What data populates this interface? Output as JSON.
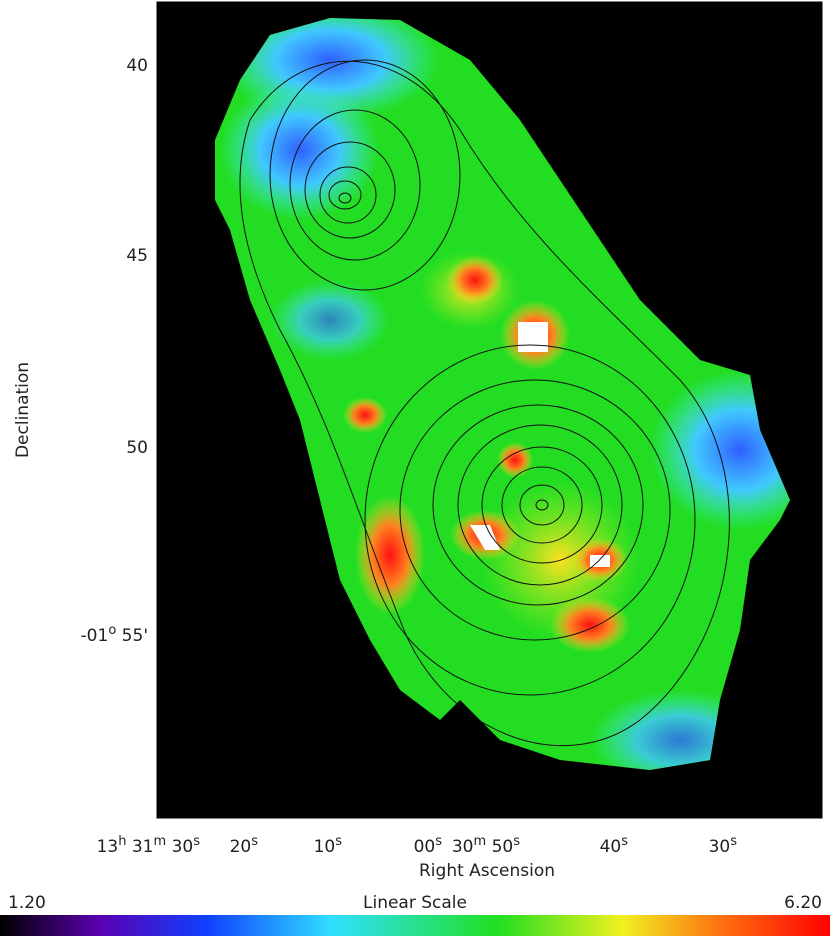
{
  "axes": {
    "y_label": "Declination",
    "x_label": "Right Ascension",
    "y_ticks": [
      [
        "40"
      ],
      [
        "45"
      ],
      [
        "50"
      ],
      [
        "-01",
        "o",
        " 55'"
      ]
    ],
    "x_ticks": [
      [
        "13",
        "h",
        " 31",
        "m",
        " 30",
        "s"
      ],
      [
        "20",
        "s"
      ],
      [
        "10",
        "s"
      ],
      [
        "00",
        "s"
      ],
      [
        "30",
        "m",
        " 50",
        "s"
      ],
      [
        "40",
        "s"
      ],
      [
        "30",
        "s"
      ]
    ]
  },
  "colorbar": {
    "title": "Linear Scale",
    "min": "1.20",
    "max": "6.20"
  }
}
